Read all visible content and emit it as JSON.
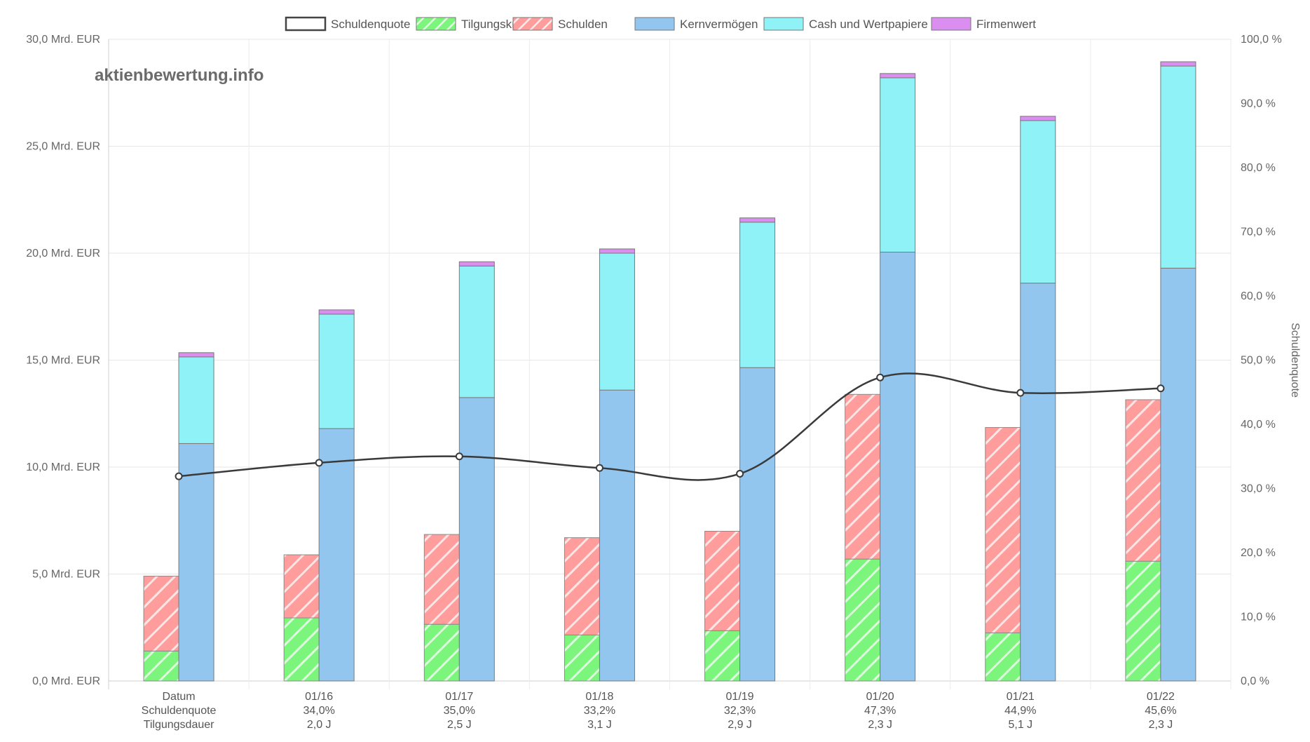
{
  "watermark": "aktienbewertung.info",
  "chart_data": {
    "type": "bar",
    "categories": [
      "Datum",
      "01/16",
      "01/17",
      "01/18",
      "01/19",
      "01/20",
      "01/21",
      "01/22"
    ],
    "category_sublabels": [
      [
        "Schuldenquote",
        "Tilgungsdauer"
      ],
      [
        "34,0%",
        "2,0 J"
      ],
      [
        "35,0%",
        "2,5 J"
      ],
      [
        "33,2%",
        "3,1 J"
      ],
      [
        "32,3%",
        "2,9 J"
      ],
      [
        "47,3%",
        "2,3 J"
      ],
      [
        "44,9%",
        "5,1 J"
      ],
      [
        "45,6%",
        "2,3 J"
      ]
    ],
    "y_left": {
      "min": 0,
      "max": 30,
      "step": 5,
      "tick_labels": [
        "0,0 Mrd. EUR",
        "5,0 Mrd. EUR",
        "10,0 Mrd. EUR",
        "15,0 Mrd. EUR",
        "20,0 Mrd. EUR",
        "25,0 Mrd. EUR",
        "30,0 Mrd. EUR"
      ]
    },
    "y_right": {
      "min": 0,
      "max": 100,
      "step": 10,
      "title": "Schuldenquote",
      "tick_labels": [
        "0,0 %",
        "10,0 %",
        "20,0 %",
        "30,0 %",
        "40,0 %",
        "50,0 %",
        "60,0 %",
        "70,0 %",
        "80,0 %",
        "90,0 %",
        "100,0 %"
      ]
    },
    "grid": true,
    "legend_position": "top",
    "legend": [
      {
        "name": "Schuldenquote",
        "swatch": "line",
        "color": "#444444"
      },
      {
        "name": "Tilgungskraft",
        "swatch": "hatch",
        "color": "#7cf57c"
      },
      {
        "name": "Schulden",
        "swatch": "hatch",
        "color": "#ff9c9c"
      },
      {
        "name": "Kernvermögen",
        "swatch": "solid",
        "color": "#93c6ee"
      },
      {
        "name": "Cash und Wertpapiere",
        "swatch": "solid",
        "color": "#8ef2f6"
      },
      {
        "name": "Firmenwert",
        "swatch": "solid",
        "color": "#d98ef0"
      }
    ],
    "stack_liabilities": {
      "Tilgungskraft": [
        1.4,
        2.95,
        2.65,
        2.15,
        2.35,
        5.7,
        2.25,
        5.6
      ],
      "Schulden": [
        3.5,
        2.95,
        4.2,
        4.55,
        4.65,
        7.7,
        9.6,
        7.55
      ]
    },
    "stack_assets": {
      "Kernvermögen": [
        11.1,
        11.8,
        13.25,
        13.6,
        14.65,
        20.05,
        18.6,
        19.3
      ],
      "Cash und Wertpapiere": [
        4.05,
        5.35,
        6.15,
        6.4,
        6.8,
        8.15,
        7.6,
        9.45
      ],
      "Firmenwert": [
        0.2,
        0.2,
        0.2,
        0.2,
        0.2,
        0.2,
        0.2,
        0.2
      ]
    },
    "line_series": {
      "name": "Schuldenquote",
      "axis": "right",
      "values": [
        31.9,
        34.0,
        35.0,
        33.2,
        32.3,
        47.3,
        44.9,
        45.6
      ]
    }
  }
}
